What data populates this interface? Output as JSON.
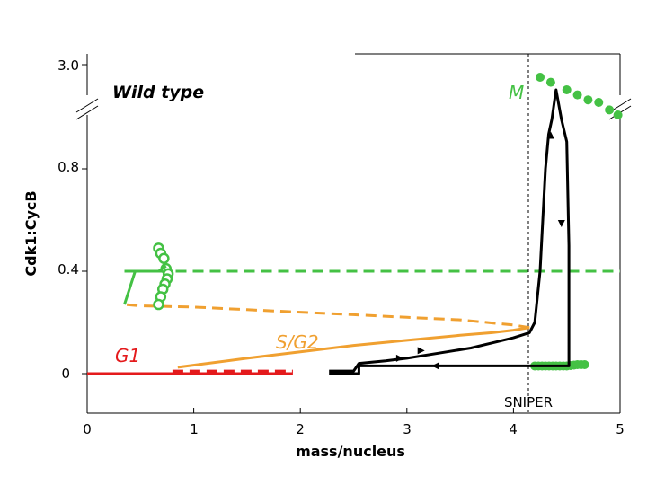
{
  "chart_data": {
    "type": "line",
    "title": "Wild type",
    "xlabel": "mass/nucleus",
    "ylabel": "Cdk1:CycB",
    "xlim": [
      0,
      5
    ],
    "x_ticks": [
      "0",
      "1",
      "2",
      "3",
      "4",
      "5"
    ],
    "y_ticks": [
      "0",
      "0.4",
      "0.8",
      "3.0"
    ],
    "y_axis_break": true,
    "annotations": {
      "g1": "G1",
      "sg2": "S/G2",
      "m": "M",
      "sniper": "SNIPER",
      "sniper_x": 4.15
    },
    "colors": {
      "g1": "#e41a1c",
      "sg2": "#f0a030",
      "m": "#44c144",
      "trajectory": "#000000"
    },
    "series": [
      {
        "label": "G1 stable branch",
        "color": "#e41a1c",
        "style": "solid",
        "x": [
          0,
          1.93
        ],
        "y": [
          0,
          0
        ]
      },
      {
        "label": "G1 unstable branch",
        "color": "#e41a1c",
        "style": "dashed",
        "x": [
          0.8,
          1.93
        ],
        "y": [
          0.01,
          0.01
        ]
      },
      {
        "label": "S/G2 stable branch",
        "color": "#f0a030",
        "style": "solid",
        "x": [
          0.85,
          1.5,
          2.0,
          2.5,
          3.0,
          3.5,
          3.8,
          4.0,
          4.15
        ],
        "y": [
          0.025,
          0.06,
          0.085,
          0.11,
          0.13,
          0.15,
          0.16,
          0.17,
          0.18
        ]
      },
      {
        "label": "S/G2 unstable branch",
        "color": "#f0a030",
        "style": "dashed",
        "x": [
          4.15,
          4.0,
          3.5,
          3.0,
          2.5,
          2.0,
          1.5,
          1.0,
          0.5,
          0.35
        ],
        "y": [
          0.18,
          0.19,
          0.21,
          0.22,
          0.23,
          0.24,
          0.25,
          0.26,
          0.265,
          0.27
        ]
      },
      {
        "label": "M stable branch (low)",
        "color": "#44c144",
        "style": "dots",
        "x": [
          4.2,
          4.3,
          4.4,
          4.5,
          4.6,
          4.7
        ],
        "y": [
          0.03,
          0.03,
          0.03,
          0.03,
          0.035,
          0.035
        ]
      },
      {
        "label": "M unstable branch",
        "color": "#44c144",
        "style": "dashed",
        "x": [
          0.35,
          0.9,
          1.5,
          2.0,
          2.5,
          3.0,
          3.5,
          4.0,
          4.5,
          5.0
        ],
        "y": [
          0.4,
          0.4,
          0.4,
          0.4,
          0.4,
          0.4,
          0.4,
          0.4,
          0.4,
          0.4
        ]
      },
      {
        "label": "M oscillation envelope",
        "color": "#44c144",
        "style": "circles",
        "x": [
          0.67,
          0.69,
          0.72,
          0.74,
          0.76,
          0.75,
          0.73,
          0.71,
          0.69,
          0.67
        ],
        "y": [
          0.49,
          0.47,
          0.45,
          0.41,
          0.39,
          0.37,
          0.35,
          0.33,
          0.3,
          0.27
        ]
      },
      {
        "label": "Trajectory",
        "color": "#000000",
        "style": "solid",
        "x": [
          2.27,
          2.5,
          2.55,
          2.8,
          3.0,
          3.3,
          3.6,
          3.8,
          4.0,
          4.15,
          4.2,
          4.25,
          4.3,
          4.33,
          4.36,
          4.4,
          4.45,
          4.5,
          4.52,
          4.52,
          2.55,
          2.55,
          2.27
        ],
        "y": [
          0.01,
          0.01,
          0.04,
          0.05,
          0.06,
          0.08,
          0.1,
          0.12,
          0.14,
          0.16,
          0.2,
          0.4,
          0.8,
          1.5,
          2.5,
          2.9,
          2.5,
          1.0,
          0.5,
          0.03,
          0.03,
          0.0,
          0.0
        ]
      }
    ]
  }
}
